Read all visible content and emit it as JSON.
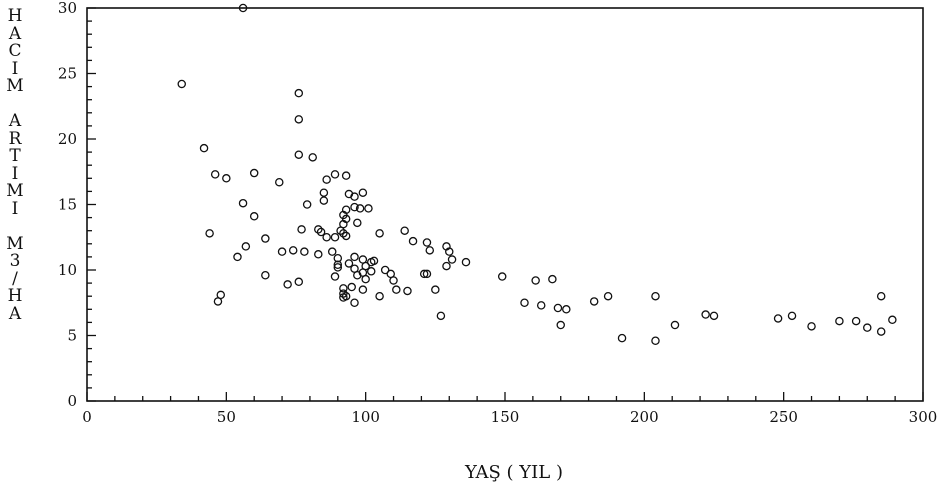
{
  "chart_data": {
    "type": "scatter",
    "title": "",
    "xlabel": "YAŞ ( YIL )",
    "ylabel": "HACIM ARTIMI M3/HA",
    "xlim": [
      0,
      300
    ],
    "ylim": [
      0,
      30
    ],
    "x_ticks": [
      0,
      50,
      100,
      150,
      200,
      250,
      300
    ],
    "y_ticks": [
      0,
      5,
      10,
      15,
      20,
      25,
      30
    ],
    "grid": false,
    "legend": "none",
    "marker": "open-circle",
    "points": [
      [
        56,
        30.0
      ],
      [
        34,
        24.2
      ],
      [
        76,
        23.5
      ],
      [
        76,
        21.5
      ],
      [
        42,
        19.3
      ],
      [
        76,
        18.8
      ],
      [
        81,
        18.6
      ],
      [
        46,
        17.3
      ],
      [
        50,
        17.0
      ],
      [
        60,
        17.4
      ],
      [
        69,
        16.7
      ],
      [
        86,
        16.9
      ],
      [
        89,
        17.3
      ],
      [
        93,
        17.2
      ],
      [
        85,
        15.9
      ],
      [
        85,
        15.3
      ],
      [
        94,
        15.8
      ],
      [
        96,
        15.6
      ],
      [
        99,
        15.9
      ],
      [
        56,
        15.1
      ],
      [
        79,
        15.0
      ],
      [
        92,
        14.2
      ],
      [
        93,
        14.6
      ],
      [
        96,
        14.8
      ],
      [
        98,
        14.7
      ],
      [
        101,
        14.7
      ],
      [
        60,
        14.1
      ],
      [
        93,
        13.9
      ],
      [
        92,
        13.5
      ],
      [
        97,
        13.6
      ],
      [
        44,
        12.8
      ],
      [
        77,
        13.1
      ],
      [
        83,
        13.1
      ],
      [
        84,
        12.9
      ],
      [
        91,
        13.0
      ],
      [
        92,
        12.8
      ],
      [
        93,
        12.6
      ],
      [
        86,
        12.5
      ],
      [
        89,
        12.5
      ],
      [
        105,
        12.8
      ],
      [
        114,
        13.0
      ],
      [
        64,
        12.4
      ],
      [
        57,
        11.8
      ],
      [
        70,
        11.4
      ],
      [
        74,
        11.5
      ],
      [
        78,
        11.4
      ],
      [
        83,
        11.2
      ],
      [
        88,
        11.4
      ],
      [
        117,
        12.2
      ],
      [
        122,
        12.1
      ],
      [
        129,
        11.8
      ],
      [
        54,
        11.0
      ],
      [
        90,
        10.9
      ],
      [
        96,
        11.0
      ],
      [
        99,
        10.8
      ],
      [
        102,
        10.6
      ],
      [
        90,
        10.4
      ],
      [
        94,
        10.5
      ],
      [
        100,
        10.3
      ],
      [
        103,
        10.7
      ],
      [
        123,
        11.5
      ],
      [
        130,
        11.4
      ],
      [
        131,
        10.8
      ],
      [
        136,
        10.6
      ],
      [
        90,
        10.2
      ],
      [
        96,
        10.1
      ],
      [
        99,
        9.8
      ],
      [
        102,
        9.9
      ],
      [
        107,
        10.0
      ],
      [
        109,
        9.7
      ],
      [
        121,
        9.7
      ],
      [
        129,
        10.3
      ],
      [
        64,
        9.6
      ],
      [
        89,
        9.5
      ],
      [
        97,
        9.6
      ],
      [
        100,
        9.3
      ],
      [
        110,
        9.2
      ],
      [
        122,
        9.7
      ],
      [
        149,
        9.5
      ],
      [
        161,
        9.2
      ],
      [
        167,
        9.3
      ],
      [
        72,
        8.9
      ],
      [
        76,
        9.1
      ],
      [
        92,
        8.6
      ],
      [
        95,
        8.7
      ],
      [
        99,
        8.5
      ],
      [
        111,
        8.5
      ],
      [
        115,
        8.4
      ],
      [
        125,
        8.5
      ],
      [
        92,
        8.2
      ],
      [
        93,
        8.0
      ],
      [
        105,
        8.0
      ],
      [
        48,
        8.1
      ],
      [
        47,
        7.6
      ],
      [
        92,
        7.9
      ],
      [
        96,
        7.5
      ],
      [
        157,
        7.5
      ],
      [
        163,
        7.3
      ],
      [
        169,
        7.1
      ],
      [
        172,
        7.0
      ],
      [
        182,
        7.6
      ],
      [
        187,
        8.0
      ],
      [
        204,
        8.0
      ],
      [
        127,
        6.5
      ],
      [
        170,
        5.8
      ],
      [
        192,
        4.8
      ],
      [
        204,
        4.6
      ],
      [
        211,
        5.8
      ],
      [
        222,
        6.6
      ],
      [
        225,
        6.5
      ],
      [
        248,
        6.3
      ],
      [
        253,
        6.5
      ],
      [
        260,
        5.7
      ],
      [
        270,
        6.1
      ],
      [
        276,
        6.1
      ],
      [
        280,
        5.6
      ],
      [
        285,
        5.3
      ],
      [
        285,
        8.0
      ],
      [
        289,
        6.2
      ]
    ]
  },
  "ylabel_chars": [
    "H",
    "A",
    "C",
    "I",
    "M",
    "",
    "A",
    "R",
    "T",
    "I",
    "M",
    "I",
    "",
    "M",
    "3",
    "/",
    "H",
    "A"
  ]
}
